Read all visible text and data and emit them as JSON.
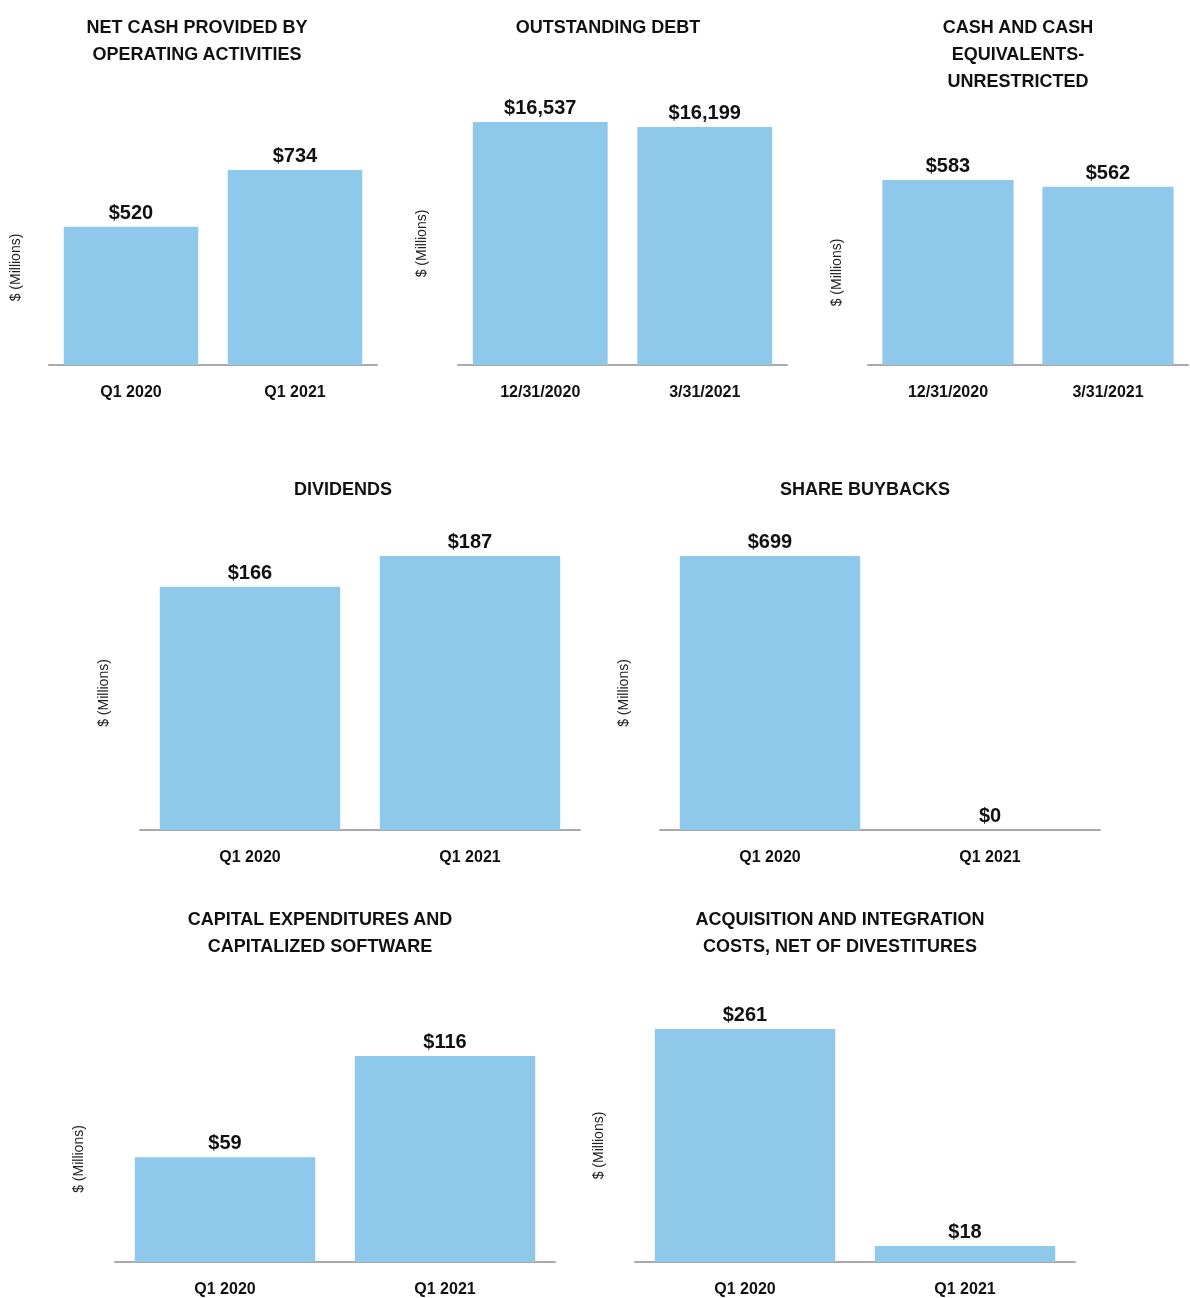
{
  "chart_data": [
    {
      "type": "bar",
      "title": "NET CASH PROVIDED BY\nOPERATING ACTIVITIES",
      "ylabel": "$ (Millions)",
      "categories": [
        "Q1 2020",
        "Q1 2021"
      ],
      "values": [
        520,
        734
      ],
      "value_labels": [
        "$520",
        "$734"
      ],
      "color": "#8ec8ea"
    },
    {
      "type": "bar",
      "title": "OUTSTANDING DEBT",
      "ylabel": "$ (Millions)",
      "categories": [
        "12/31/2020",
        "3/31/2021"
      ],
      "values": [
        16537,
        16199
      ],
      "value_labels": [
        "$16,537",
        "$16,199"
      ],
      "color": "#8ec8ea"
    },
    {
      "type": "bar",
      "title": "CASH AND CASH\nEQUIVALENTS-\nUNRESTRICTED",
      "ylabel": "$ (Millions)",
      "categories": [
        "12/31/2020",
        "3/31/2021"
      ],
      "values": [
        583,
        562
      ],
      "value_labels": [
        "$583",
        "$562"
      ],
      "color": "#8ec8ea"
    },
    {
      "type": "bar",
      "title": "DIVIDENDS",
      "ylabel": "$ (Millions)",
      "categories": [
        "Q1 2020",
        "Q1 2021"
      ],
      "values": [
        166,
        187
      ],
      "value_labels": [
        "$166",
        "$187"
      ],
      "color": "#8ec8ea"
    },
    {
      "type": "bar",
      "title": "SHARE BUYBACKS",
      "ylabel": "$ (Millions)",
      "categories": [
        "Q1 2020",
        "Q1 2021"
      ],
      "values": [
        699,
        0
      ],
      "value_labels": [
        "$699",
        "$0"
      ],
      "color": "#8ec8ea"
    },
    {
      "type": "bar",
      "title": "CAPITAL EXPENDITURES AND\nCAPITALIZED SOFTWARE",
      "ylabel": "$ (Millions)",
      "categories": [
        "Q1 2020",
        "Q1 2021"
      ],
      "values": [
        59,
        116
      ],
      "value_labels": [
        "$59",
        "$116"
      ],
      "color": "#8ec8ea"
    },
    {
      "type": "bar",
      "title": "ACQUISITION AND INTEGRATION\nCOSTS, NET OF DIVESTITURES",
      "ylabel": "$ (Millions)",
      "categories": [
        "Q1 2020",
        "Q1 2021"
      ],
      "values": [
        261,
        18
      ],
      "value_labels": [
        "$261",
        "$18"
      ],
      "color": "#8ec8ea"
    }
  ]
}
